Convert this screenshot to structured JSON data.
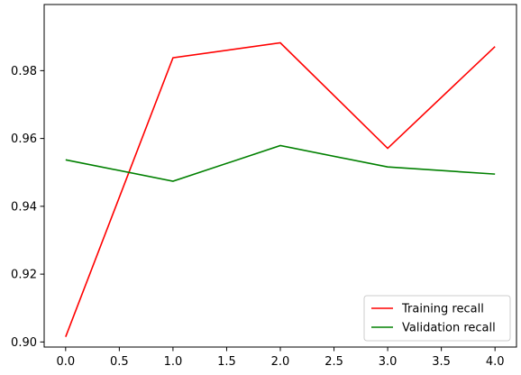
{
  "chart_data": {
    "type": "line",
    "title": "",
    "xlabel": "",
    "ylabel": "",
    "x": [
      0,
      1,
      2,
      3,
      4
    ],
    "xlim": [
      -0.2,
      4.2
    ],
    "ylim": [
      0.8985,
      0.9995
    ],
    "xticks": [
      0.0,
      0.5,
      1.0,
      1.5,
      2.0,
      2.5,
      3.0,
      3.5,
      4.0
    ],
    "xtick_labels": [
      "0.0",
      "0.5",
      "1.0",
      "1.5",
      "2.0",
      "2.5",
      "3.0",
      "3.5",
      "4.0"
    ],
    "yticks": [
      0.9,
      0.92,
      0.94,
      0.96,
      0.98
    ],
    "ytick_labels": [
      "0.90",
      "0.92",
      "0.94",
      "0.96",
      "0.98"
    ],
    "grid": false,
    "legend_position": "bottom-right",
    "series": [
      {
        "name": "Training recall",
        "color": "#ff0000",
        "values": [
          0.9015,
          0.9838,
          0.9882,
          0.9571,
          0.9871
        ]
      },
      {
        "name": "Validation recall",
        "color": "#008000",
        "values": [
          0.9537,
          0.9474,
          0.9579,
          0.9516,
          0.9495
        ]
      }
    ]
  }
}
